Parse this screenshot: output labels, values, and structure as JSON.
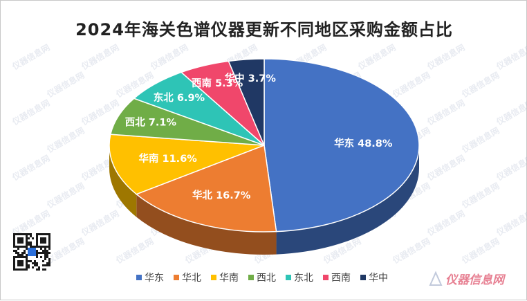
{
  "chart_data": {
    "type": "pie",
    "title": "2024年海关色谱仪器更新不同地区采购金额占比",
    "categories": [
      "华东",
      "华北",
      "华南",
      "西北",
      "东北",
      "西南",
      "华中"
    ],
    "values": [
      48.8,
      16.7,
      11.6,
      7.1,
      6.9,
      5.3,
      3.7
    ],
    "labels": [
      "华东 48.8%",
      "华北 16.7%",
      "华南 11.6%",
      "西北 7.1%",
      "东北 6.9%",
      "西南 5.3%",
      "华中 3.7%"
    ],
    "colors": [
      "#4472c4",
      "#ed7d31",
      "#ffc000",
      "#70ad47",
      "#2ec4b6",
      "#f0476b",
      "#203864"
    ],
    "legend_position": "bottom",
    "style": "3d"
  },
  "watermark": {
    "text": "仪器信息网",
    "corner_logo": "仪器信息网"
  }
}
